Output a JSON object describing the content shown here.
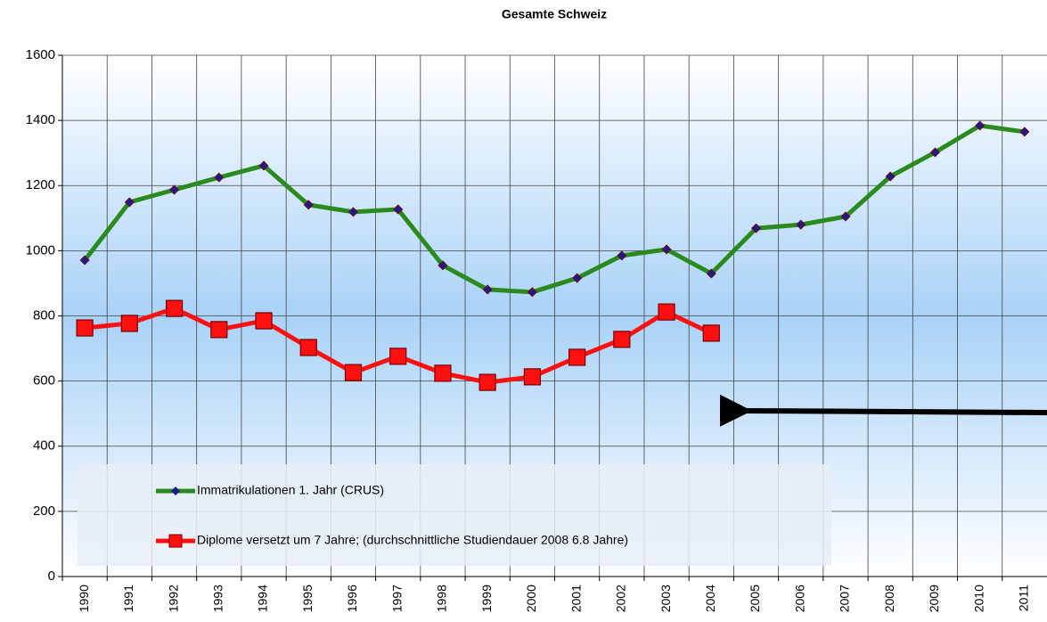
{
  "chart_data": {
    "type": "line",
    "title": "Gesamte Schweiz",
    "categories": [
      "1990",
      "1991",
      "1992",
      "1993",
      "1994",
      "1995",
      "1996",
      "1997",
      "1998",
      "1999",
      "2000",
      "2001",
      "2002",
      "2003",
      "2004",
      "2005",
      "2006",
      "2007",
      "2008",
      "2009",
      "2010",
      "2011"
    ],
    "series": [
      {
        "name": "Immatrikulationen 1. Jahr (CRUS)",
        "color": "#2a8a1e",
        "marker": "diamond",
        "marker_color": "#1c1c8a",
        "values": [
          971,
          1149,
          1187,
          1225,
          1261,
          1141,
          1119,
          1127,
          955,
          881,
          873,
          916,
          985,
          1004,
          930,
          1069,
          1080,
          1105,
          1228,
          1302,
          1384,
          1365
        ]
      },
      {
        "name": "Diplome versetzt um 7 Jahre; (durchschnittliche Studiendauer 2008 6.8 Jahre)",
        "color": "#ff1010",
        "marker": "square",
        "marker_color": "#ff1010",
        "values": [
          763,
          777,
          823,
          758,
          785,
          703,
          626,
          676,
          624,
          596,
          613,
          673,
          728,
          812,
          747,
          null,
          null,
          null,
          null,
          null,
          null,
          null
        ]
      }
    ],
    "ylim": [
      0,
      1600
    ],
    "yticks": [
      0,
      200,
      400,
      600,
      800,
      1000,
      1200,
      1400,
      1600
    ],
    "grid": true,
    "legend": "lower-left"
  }
}
